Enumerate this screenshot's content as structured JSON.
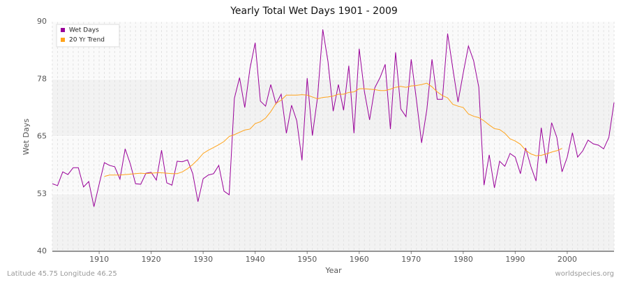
{
  "chart_data": {
    "type": "line",
    "title": "Yearly Total Wet Days 1901 - 2009",
    "x_label": "Year",
    "y_label": "Wet Days",
    "footer_left": "Latitude 45.75 Longitude 46.25",
    "footer_right": "worldspecies.org",
    "x": [
      1901,
      1902,
      1903,
      1904,
      1905,
      1906,
      1907,
      1908,
      1909,
      1910,
      1911,
      1912,
      1913,
      1914,
      1915,
      1916,
      1917,
      1918,
      1919,
      1920,
      1921,
      1922,
      1923,
      1924,
      1925,
      1926,
      1927,
      1928,
      1929,
      1930,
      1931,
      1932,
      1933,
      1934,
      1935,
      1936,
      1937,
      1938,
      1939,
      1940,
      1941,
      1942,
      1943,
      1944,
      1945,
      1946,
      1947,
      1948,
      1949,
      1950,
      1951,
      1952,
      1953,
      1954,
      1955,
      1956,
      1957,
      1958,
      1959,
      1960,
      1961,
      1962,
      1963,
      1964,
      1965,
      1966,
      1967,
      1968,
      1969,
      1970,
      1971,
      1972,
      1973,
      1974,
      1975,
      1976,
      1977,
      1978,
      1979,
      1980,
      1981,
      1982,
      1983,
      1984,
      1985,
      1986,
      1987,
      1988,
      1989,
      1990,
      1991,
      1992,
      1993,
      1994,
      1995,
      1996,
      1997,
      1998,
      1999,
      2000,
      2001,
      2002,
      2003,
      2004,
      2005,
      2006,
      2007,
      2008,
      2009
    ],
    "series": [
      {
        "name": "Wet Days",
        "color": "#990099",
        "values": [
          54.7,
          54.3,
          57.3,
          56.7,
          58.2,
          58.2,
          54.0,
          55.2,
          49.7,
          54.6,
          59.3,
          58.7,
          58.4,
          55.7,
          62.3,
          59.0,
          54.7,
          54.6,
          57.0,
          57.2,
          55.5,
          62.0,
          54.9,
          54.4,
          59.6,
          59.5,
          59.9,
          56.9,
          50.8,
          55.8,
          56.6,
          56.9,
          58.7,
          53.1,
          52.3,
          73.3,
          77.8,
          71.3,
          79.8,
          85.4,
          72.7,
          71.6,
          76.3,
          72.1,
          74.2,
          65.7,
          71.8,
          68.4,
          59.8,
          77.7,
          65.2,
          73.6,
          88.3,
          81.3,
          70.5,
          76.3,
          70.7,
          80.4,
          65.7,
          84.1,
          74.8,
          68.6,
          75.6,
          77.8,
          80.7,
          66.6,
          83.3,
          71.0,
          69.3,
          81.8,
          73.0,
          63.6,
          70.8,
          81.8,
          73.1,
          73.1,
          87.4,
          79.8,
          72.5,
          78.8,
          84.7,
          81.5,
          75.7,
          54.4,
          61.0,
          53.8,
          59.6,
          58.5,
          61.3,
          60.5,
          56.9,
          62.5,
          58.5,
          55.3,
          66.9,
          59.1,
          68.0,
          64.8,
          57.3,
          60.5,
          65.8,
          60.5,
          61.9,
          64.2,
          63.4,
          63.1,
          62.3,
          64.8,
          72.4
        ]
      },
      {
        "name": "20 Yr Trend",
        "color": "#ffa31a",
        "values": [
          null,
          null,
          null,
          null,
          null,
          null,
          null,
          null,
          null,
          null,
          56.3,
          56.6,
          56.6,
          56.6,
          56.7,
          56.8,
          56.9,
          57.0,
          56.9,
          57.0,
          57.1,
          57.1,
          57.0,
          56.9,
          56.9,
          57.3,
          58.0,
          58.9,
          60.0,
          61.3,
          62.0,
          62.6,
          63.2,
          63.9,
          65.0,
          65.4,
          65.9,
          66.4,
          66.6,
          67.8,
          68.2,
          69.0,
          70.4,
          72.2,
          72.9,
          74.0,
          74.0,
          74.0,
          74.1,
          74.0,
          73.6,
          73.2,
          73.5,
          73.6,
          73.8,
          74.2,
          74.2,
          74.6,
          74.7,
          75.4,
          75.4,
          75.3,
          75.2,
          75.0,
          75.0,
          75.3,
          75.7,
          75.9,
          75.7,
          76.0,
          76.1,
          76.3,
          76.6,
          75.8,
          74.7,
          73.9,
          73.4,
          72.0,
          71.6,
          71.3,
          69.9,
          69.4,
          69.1,
          68.4,
          67.5,
          66.7,
          66.5,
          65.7,
          64.5,
          64.0,
          63.3,
          62.0,
          61.2,
          60.8,
          60.9,
          61.2,
          61.6,
          61.9,
          62.4,
          null,
          null,
          null,
          null,
          null,
          null,
          null,
          null,
          null,
          null
        ]
      }
    ],
    "xlim": [
      1901,
      2009
    ],
    "xticks": [
      1910,
      1920,
      1930,
      1940,
      1950,
      1960,
      1970,
      1980,
      1990,
      2000
    ],
    "ylim": [
      40,
      90
    ],
    "yticks": [
      40,
      {
        "value": 52.5,
        "label": "53"
      },
      65,
      {
        "value": 77.5,
        "label": "78"
      },
      90
    ],
    "grid": true,
    "legend": "top-left"
  }
}
